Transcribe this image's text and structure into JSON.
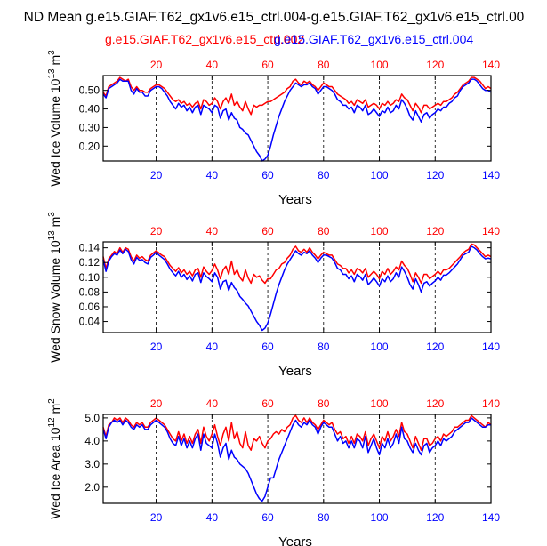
{
  "title": "ND Mean g.e15.GIAF.T62_gx1v6.e15_ctrl.004-g.e15.GIAF.T62_gx1v6.e15_ctrl.00",
  "legend": {
    "red_label": "g.e15.GIAF.T62_gx1v6.e15_ctrl.002",
    "blue_label": "g.e15.GIAF.T62_gx1v6.e15_ctrl.004"
  },
  "colors": {
    "red": "#ff0000",
    "blue": "#0000ff",
    "axis": "#000000",
    "grid": "#000000"
  },
  "chart_data": [
    {
      "type": "line",
      "name": "ice-volume",
      "ylabel_main": "Wed Ice Volume 10",
      "ylabel_exp": "13",
      "ylabel_unit": "m",
      "ylabel_unit_exp": "3",
      "xlabel": "Years",
      "xlim": [
        1,
        140
      ],
      "ylim": [
        0.12,
        0.58
      ],
      "yticks": [
        0.2,
        0.3,
        0.4,
        0.5
      ],
      "ytick_labels": [
        "0.20",
        "0.30",
        "0.40",
        "0.50"
      ],
      "xticks": [
        20,
        40,
        60,
        80,
        100,
        120,
        140
      ],
      "grid_x": [
        20,
        40,
        60,
        80,
        100,
        120
      ],
      "series": [
        {
          "name": "g.e15.GIAF.T62_gx1v6.e15_ctrl.002",
          "color": "red",
          "values": [
            0.49,
            0.47,
            0.52,
            0.53,
            0.54,
            0.55,
            0.57,
            0.56,
            0.55,
            0.56,
            0.52,
            0.5,
            0.52,
            0.5,
            0.5,
            0.49,
            0.49,
            0.51,
            0.52,
            0.53,
            0.53,
            0.52,
            0.51,
            0.49,
            0.47,
            0.45,
            0.44,
            0.45,
            0.43,
            0.44,
            0.42,
            0.43,
            0.41,
            0.43,
            0.44,
            0.4,
            0.45,
            0.44,
            0.42,
            0.43,
            0.46,
            0.44,
            0.4,
            0.44,
            0.46,
            0.43,
            0.48,
            0.42,
            0.44,
            0.41,
            0.39,
            0.44,
            0.4,
            0.37,
            0.42,
            0.41,
            0.42,
            0.42,
            0.43,
            0.44,
            0.44,
            0.45,
            0.46,
            0.47,
            0.48,
            0.49,
            0.51,
            0.52,
            0.55,
            0.56,
            0.54,
            0.53,
            0.55,
            0.54,
            0.55,
            0.53,
            0.52,
            0.5,
            0.52,
            0.54,
            0.53,
            0.52,
            0.52,
            0.5,
            0.48,
            0.47,
            0.46,
            0.45,
            0.43,
            0.44,
            0.42,
            0.45,
            0.44,
            0.43,
            0.45,
            0.41,
            0.42,
            0.43,
            0.42,
            0.4,
            0.43,
            0.42,
            0.44,
            0.42,
            0.43,
            0.45,
            0.44,
            0.48,
            0.46,
            0.45,
            0.42,
            0.39,
            0.43,
            0.41,
            0.38,
            0.42,
            0.42,
            0.4,
            0.41,
            0.42,
            0.43,
            0.42,
            0.44,
            0.44,
            0.45,
            0.46,
            0.48,
            0.49,
            0.51,
            0.53,
            0.54,
            0.55,
            0.57,
            0.57,
            0.56,
            0.55,
            0.53,
            0.51,
            0.52,
            0.51
          ]
        },
        {
          "name": "g.e15.GIAF.T62_gx1v6.e15_ctrl.004",
          "color": "blue",
          "values": [
            0.48,
            0.46,
            0.51,
            0.52,
            0.53,
            0.54,
            0.56,
            0.55,
            0.55,
            0.55,
            0.5,
            0.48,
            0.51,
            0.49,
            0.49,
            0.47,
            0.47,
            0.5,
            0.51,
            0.52,
            0.52,
            0.51,
            0.49,
            0.47,
            0.44,
            0.42,
            0.4,
            0.43,
            0.41,
            0.42,
            0.39,
            0.41,
            0.38,
            0.41,
            0.42,
            0.37,
            0.42,
            0.41,
            0.4,
            0.38,
            0.42,
            0.41,
            0.35,
            0.39,
            0.4,
            0.34,
            0.38,
            0.35,
            0.34,
            0.3,
            0.29,
            0.27,
            0.26,
            0.23,
            0.2,
            0.17,
            0.15,
            0.12,
            0.13,
            0.15,
            0.2,
            0.26,
            0.31,
            0.36,
            0.4,
            0.44,
            0.47,
            0.5,
            0.52,
            0.54,
            0.53,
            0.52,
            0.53,
            0.53,
            0.54,
            0.52,
            0.51,
            0.48,
            0.5,
            0.52,
            0.52,
            0.51,
            0.5,
            0.48,
            0.45,
            0.44,
            0.42,
            0.42,
            0.4,
            0.41,
            0.38,
            0.42,
            0.41,
            0.39,
            0.42,
            0.37,
            0.38,
            0.4,
            0.38,
            0.36,
            0.39,
            0.38,
            0.41,
            0.38,
            0.39,
            0.42,
            0.4,
            0.45,
            0.43,
            0.4,
            0.36,
            0.34,
            0.39,
            0.36,
            0.33,
            0.37,
            0.38,
            0.35,
            0.37,
            0.38,
            0.4,
            0.39,
            0.41,
            0.41,
            0.43,
            0.44,
            0.46,
            0.47,
            0.5,
            0.52,
            0.53,
            0.54,
            0.56,
            0.56,
            0.55,
            0.53,
            0.51,
            0.5,
            0.5,
            0.49
          ]
        }
      ]
    },
    {
      "type": "line",
      "name": "snow-volume",
      "ylabel_main": "Wed Snow Volume 10",
      "ylabel_exp": "13",
      "ylabel_unit": "m",
      "ylabel_unit_exp": "3",
      "xlabel": "Years",
      "xlim": [
        1,
        140
      ],
      "ylim": [
        0.025,
        0.148
      ],
      "yticks": [
        0.04,
        0.06,
        0.08,
        0.1,
        0.12,
        0.14
      ],
      "ytick_labels": [
        "0.04",
        "0.06",
        "0.08",
        "0.10",
        "0.12",
        "0.14"
      ],
      "xticks": [
        20,
        40,
        60,
        80,
        100,
        120,
        140
      ],
      "grid_x": [
        20,
        40,
        60,
        80,
        100,
        120
      ],
      "series": [
        {
          "name": "g.e15.GIAF.T62_gx1v6.e15_ctrl.002",
          "color": "red",
          "values": [
            0.128,
            0.112,
            0.125,
            0.13,
            0.135,
            0.132,
            0.14,
            0.134,
            0.14,
            0.138,
            0.128,
            0.122,
            0.13,
            0.126,
            0.128,
            0.124,
            0.122,
            0.13,
            0.133,
            0.136,
            0.133,
            0.13,
            0.128,
            0.122,
            0.116,
            0.112,
            0.108,
            0.113,
            0.106,
            0.11,
            0.104,
            0.108,
            0.102,
            0.11,
            0.112,
            0.1,
            0.114,
            0.108,
            0.104,
            0.109,
            0.118,
            0.11,
            0.098,
            0.11,
            0.115,
            0.104,
            0.122,
            0.104,
            0.11,
            0.1,
            0.095,
            0.11,
            0.099,
            0.092,
            0.104,
            0.1,
            0.102,
            0.096,
            0.092,
            0.098,
            0.098,
            0.104,
            0.11,
            0.112,
            0.118,
            0.12,
            0.126,
            0.13,
            0.138,
            0.142,
            0.136,
            0.134,
            0.138,
            0.134,
            0.14,
            0.134,
            0.13,
            0.125,
            0.13,
            0.134,
            0.132,
            0.13,
            0.13,
            0.124,
            0.118,
            0.116,
            0.112,
            0.112,
            0.106,
            0.11,
            0.104,
            0.112,
            0.11,
            0.106,
            0.112,
            0.1,
            0.104,
            0.108,
            0.104,
            0.098,
            0.108,
            0.104,
            0.112,
            0.104,
            0.108,
            0.114,
            0.11,
            0.122,
            0.116,
            0.112,
            0.104,
            0.094,
            0.106,
            0.1,
            0.092,
            0.104,
            0.104,
            0.098,
            0.101,
            0.104,
            0.108,
            0.104,
            0.11,
            0.11,
            0.112,
            0.116,
            0.12,
            0.124,
            0.128,
            0.133,
            0.136,
            0.138,
            0.145,
            0.144,
            0.14,
            0.136,
            0.132,
            0.128,
            0.13,
            0.128
          ]
        },
        {
          "name": "g.e15.GIAF.T62_gx1v6.e15_ctrl.004",
          "color": "blue",
          "values": [
            0.124,
            0.108,
            0.122,
            0.128,
            0.132,
            0.13,
            0.137,
            0.132,
            0.138,
            0.135,
            0.124,
            0.118,
            0.127,
            0.123,
            0.124,
            0.12,
            0.118,
            0.127,
            0.13,
            0.134,
            0.13,
            0.127,
            0.124,
            0.118,
            0.111,
            0.106,
            0.102,
            0.108,
            0.1,
            0.104,
            0.097,
            0.102,
            0.095,
            0.104,
            0.106,
            0.093,
            0.106,
            0.101,
            0.098,
            0.094,
            0.106,
            0.1,
            0.084,
            0.094,
            0.096,
            0.082,
            0.093,
            0.086,
            0.082,
            0.074,
            0.07,
            0.065,
            0.061,
            0.054,
            0.047,
            0.04,
            0.035,
            0.028,
            0.031,
            0.038,
            0.05,
            0.064,
            0.078,
            0.09,
            0.1,
            0.11,
            0.118,
            0.124,
            0.13,
            0.136,
            0.132,
            0.13,
            0.134,
            0.132,
            0.136,
            0.13,
            0.126,
            0.12,
            0.126,
            0.13,
            0.13,
            0.128,
            0.126,
            0.12,
            0.112,
            0.11,
            0.104,
            0.104,
            0.098,
            0.102,
            0.094,
            0.104,
            0.101,
            0.096,
            0.104,
            0.09,
            0.094,
            0.099,
            0.094,
            0.088,
            0.098,
            0.094,
            0.102,
            0.094,
            0.098,
            0.106,
            0.1,
            0.114,
            0.108,
            0.1,
            0.09,
            0.084,
            0.098,
            0.09,
            0.08,
            0.092,
            0.094,
            0.088,
            0.092,
            0.095,
            0.1,
            0.096,
            0.103,
            0.103,
            0.106,
            0.11,
            0.114,
            0.118,
            0.124,
            0.13,
            0.132,
            0.134,
            0.142,
            0.14,
            0.137,
            0.132,
            0.128,
            0.125,
            0.126,
            0.125
          ]
        }
      ]
    },
    {
      "type": "line",
      "name": "ice-area",
      "ylabel_main": "Wed Ice Area 10",
      "ylabel_exp": "12",
      "ylabel_unit": "m",
      "ylabel_unit_exp": "2",
      "xlabel": "Years",
      "xlim": [
        1,
        140
      ],
      "ylim": [
        1.3,
        5.15
      ],
      "yticks": [
        2.0,
        3.0,
        4.0,
        5.0
      ],
      "ytick_labels": [
        "2.0",
        "3.0",
        "4.0",
        "5.0"
      ],
      "xticks": [
        20,
        40,
        60,
        80,
        100,
        120,
        140
      ],
      "grid_x": [
        20,
        40,
        60,
        80,
        100,
        120
      ],
      "series": [
        {
          "name": "g.e15.GIAF.T62_gx1v6.e15_ctrl.002",
          "color": "red",
          "values": [
            4.6,
            4.2,
            4.7,
            4.8,
            5.0,
            4.9,
            5.0,
            4.8,
            5.0,
            4.9,
            4.7,
            4.6,
            4.8,
            4.7,
            4.8,
            4.6,
            4.6,
            4.8,
            4.9,
            5.0,
            4.9,
            4.8,
            4.7,
            4.5,
            4.3,
            4.1,
            4.0,
            4.4,
            4.0,
            4.3,
            3.9,
            4.2,
            3.9,
            4.3,
            4.5,
            3.9,
            4.6,
            4.2,
            4.0,
            4.3,
            4.7,
            4.2,
            3.8,
            4.3,
            4.6,
            4.0,
            4.8,
            4.1,
            4.4,
            3.9,
            3.7,
            4.4,
            3.8,
            3.6,
            4.1,
            4.0,
            4.2,
            3.9,
            3.7,
            4.0,
            4.1,
            4.3,
            4.4,
            4.3,
            4.5,
            4.4,
            4.6,
            4.7,
            5.0,
            5.1,
            4.9,
            4.8,
            5.0,
            4.8,
            5.0,
            4.8,
            4.7,
            4.5,
            4.7,
            4.9,
            4.8,
            4.7,
            4.8,
            4.5,
            4.3,
            4.4,
            4.1,
            4.2,
            3.9,
            4.2,
            3.9,
            4.3,
            4.2,
            4.0,
            4.4,
            3.8,
            4.1,
            4.3,
            4.0,
            3.7,
            4.2,
            4.0,
            4.4,
            4.0,
            4.2,
            4.5,
            4.2,
            4.8,
            4.4,
            4.3,
            4.0,
            3.7,
            4.2,
            3.9,
            3.6,
            4.1,
            4.1,
            3.8,
            3.9,
            4.1,
            4.2,
            4.0,
            4.3,
            4.2,
            4.3,
            4.4,
            4.6,
            4.6,
            4.7,
            4.8,
            4.9,
            4.9,
            5.1,
            5.0,
            4.9,
            4.8,
            4.7,
            4.6,
            4.8,
            4.7
          ]
        },
        {
          "name": "g.e15.GIAF.T62_gx1v6.e15_ctrl.004",
          "color": "blue",
          "values": [
            4.5,
            4.1,
            4.6,
            4.8,
            4.9,
            4.8,
            4.9,
            4.7,
            4.9,
            4.8,
            4.6,
            4.5,
            4.7,
            4.6,
            4.7,
            4.5,
            4.5,
            4.7,
            4.8,
            4.9,
            4.8,
            4.7,
            4.6,
            4.4,
            4.1,
            3.9,
            3.8,
            4.2,
            3.8,
            4.1,
            3.7,
            4.0,
            3.7,
            4.1,
            4.3,
            3.6,
            4.3,
            3.9,
            3.8,
            3.7,
            4.3,
            3.9,
            3.3,
            3.7,
            3.9,
            3.2,
            3.6,
            3.3,
            3.2,
            3.0,
            2.9,
            2.8,
            2.6,
            2.3,
            2.0,
            1.7,
            1.5,
            1.4,
            1.6,
            2.0,
            2.4,
            2.4,
            2.8,
            3.2,
            3.5,
            3.8,
            4.1,
            4.4,
            4.7,
            4.9,
            4.7,
            4.6,
            4.8,
            4.7,
            4.9,
            4.7,
            4.6,
            4.3,
            4.6,
            4.8,
            4.7,
            4.6,
            4.6,
            4.3,
            4.0,
            4.2,
            3.9,
            4.0,
            3.7,
            4.0,
            3.7,
            4.1,
            4.0,
            3.7,
            4.2,
            3.5,
            3.8,
            4.1,
            3.7,
            3.4,
            3.9,
            3.7,
            4.1,
            3.7,
            3.9,
            4.3,
            3.9,
            4.6,
            4.1,
            4.0,
            3.7,
            3.5,
            3.9,
            3.6,
            3.4,
            3.8,
            3.9,
            3.5,
            3.7,
            3.8,
            4.0,
            3.8,
            4.1,
            4.0,
            4.1,
            4.2,
            4.4,
            4.5,
            4.6,
            4.7,
            4.8,
            4.8,
            5.0,
            4.9,
            4.8,
            4.7,
            4.6,
            4.6,
            4.7,
            4.7
          ]
        }
      ]
    }
  ]
}
